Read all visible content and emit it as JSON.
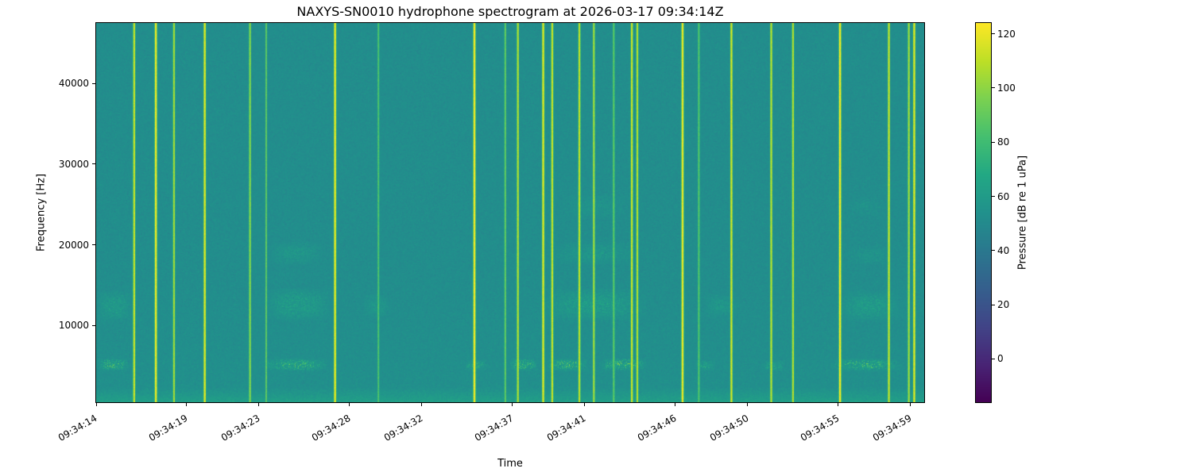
{
  "chart_data": {
    "type": "heatmap",
    "subtype": "spectrogram",
    "title": "NAXYS-SN0010 hydrophone spectrogram at 2026-03-17 09:34:14Z",
    "xlabel": "Time",
    "ylabel": "Frequency [Hz]",
    "colormap": "viridis",
    "x_range_seconds": [
      0,
      45.75
    ],
    "x_ticks": [
      {
        "label": "09:34:14",
        "t": 0
      },
      {
        "label": "09:34:19",
        "t": 5
      },
      {
        "label": "09:34:23",
        "t": 9
      },
      {
        "label": "09:34:28",
        "t": 14
      },
      {
        "label": "09:34:32",
        "t": 18
      },
      {
        "label": "09:34:37",
        "t": 23
      },
      {
        "label": "09:34:41",
        "t": 27
      },
      {
        "label": "09:34:46",
        "t": 32
      },
      {
        "label": "09:34:50",
        "t": 36
      },
      {
        "label": "09:34:55",
        "t": 41
      },
      {
        "label": "09:34:59",
        "t": 45
      }
    ],
    "freq_range_hz": [
      500,
      47500
    ],
    "y_ticks": [
      10000,
      20000,
      30000,
      40000
    ],
    "colorbar": {
      "label": "Pressure [dB re 1 uPa]",
      "ticks": [
        0,
        20,
        40,
        60,
        80,
        100,
        120
      ],
      "vmin": -16,
      "vmax": 124
    },
    "background_level_db": 52,
    "noise_db_std": 2.0,
    "low_band": {
      "freq_max_hz": 2400,
      "boost_db": 15
    },
    "events": [
      {
        "t": 2.1,
        "db": 112
      },
      {
        "t": 3.3,
        "db": 120
      },
      {
        "t": 4.3,
        "db": 105
      },
      {
        "t": 6.0,
        "db": 118
      },
      {
        "t": 8.5,
        "db": 100
      },
      {
        "t": 9.4,
        "db": 88
      },
      {
        "t": 13.2,
        "db": 120
      },
      {
        "t": 15.6,
        "db": 85
      },
      {
        "t": 20.9,
        "db": 122
      },
      {
        "t": 22.6,
        "db": 90
      },
      {
        "t": 23.3,
        "db": 108
      },
      {
        "t": 24.7,
        "db": 118
      },
      {
        "t": 25.2,
        "db": 112
      },
      {
        "t": 26.7,
        "db": 110
      },
      {
        "t": 27.5,
        "db": 105
      },
      {
        "t": 28.6,
        "db": 90
      },
      {
        "t": 29.6,
        "db": 112
      },
      {
        "t": 29.9,
        "db": 108
      },
      {
        "t": 32.4,
        "db": 120
      },
      {
        "t": 33.3,
        "db": 88
      },
      {
        "t": 35.1,
        "db": 115
      },
      {
        "t": 37.3,
        "db": 110
      },
      {
        "t": 38.5,
        "db": 108
      },
      {
        "t": 41.1,
        "db": 122
      },
      {
        "t": 43.8,
        "db": 112
      },
      {
        "t": 44.9,
        "db": 105
      },
      {
        "t": 45.2,
        "db": 118
      }
    ],
    "patches": [
      {
        "t0": 0.0,
        "t1": 1.8,
        "f0": 4400,
        "f1": 6000,
        "boost_db": 22,
        "speckle": true
      },
      {
        "t0": 9.2,
        "t1": 12.8,
        "f0": 4400,
        "f1": 6000,
        "boost_db": 22,
        "speckle": true
      },
      {
        "t0": 20.3,
        "t1": 21.6,
        "f0": 4400,
        "f1": 5800,
        "boost_db": 16,
        "speckle": true
      },
      {
        "t0": 22.8,
        "t1": 24.4,
        "f0": 4400,
        "f1": 6000,
        "boost_db": 22,
        "speckle": true
      },
      {
        "t0": 24.8,
        "t1": 27.2,
        "f0": 4400,
        "f1": 6000,
        "boost_db": 24,
        "speckle": true
      },
      {
        "t0": 27.8,
        "t1": 30.4,
        "f0": 4400,
        "f1": 6000,
        "boost_db": 26,
        "speckle": true
      },
      {
        "t0": 33.0,
        "t1": 34.2,
        "f0": 4400,
        "f1": 5800,
        "boost_db": 14,
        "speckle": true
      },
      {
        "t0": 36.8,
        "t1": 38.0,
        "f0": 4400,
        "f1": 5800,
        "boost_db": 14,
        "speckle": true
      },
      {
        "t0": 40.5,
        "t1": 44.5,
        "f0": 4400,
        "f1": 6000,
        "boost_db": 22,
        "speckle": true
      },
      {
        "t0": 0.0,
        "t1": 2.0,
        "f0": 10500,
        "f1": 14500,
        "boost_db": 11,
        "speckle": false
      },
      {
        "t0": 9.3,
        "t1": 13.0,
        "f0": 10500,
        "f1": 14800,
        "boost_db": 13,
        "speckle": false
      },
      {
        "t0": 14.8,
        "t1": 16.2,
        "f0": 11000,
        "f1": 14000,
        "boost_db": 8,
        "speckle": false
      },
      {
        "t0": 24.5,
        "t1": 30.5,
        "f0": 10500,
        "f1": 14800,
        "boost_db": 13,
        "speckle": false
      },
      {
        "t0": 33.5,
        "t1": 35.5,
        "f0": 11000,
        "f1": 14000,
        "boost_db": 8,
        "speckle": false
      },
      {
        "t0": 41.0,
        "t1": 44.5,
        "f0": 10500,
        "f1": 14500,
        "boost_db": 12,
        "speckle": false
      },
      {
        "t0": 9.5,
        "t1": 12.5,
        "f0": 17500,
        "f1": 20500,
        "boost_db": 8,
        "speckle": false
      },
      {
        "t0": 25.0,
        "t1": 30.0,
        "f0": 17500,
        "f1": 20500,
        "boost_db": 8,
        "speckle": false
      },
      {
        "t0": 41.5,
        "t1": 44.0,
        "f0": 17500,
        "f1": 20000,
        "boost_db": 6,
        "speckle": false
      },
      {
        "t0": 25.5,
        "t1": 29.5,
        "f0": 23000,
        "f1": 26500,
        "boost_db": 5,
        "speckle": false
      },
      {
        "t0": 41.5,
        "t1": 43.5,
        "f0": 23500,
        "f1": 26000,
        "boost_db": 4,
        "speckle": false
      }
    ]
  }
}
